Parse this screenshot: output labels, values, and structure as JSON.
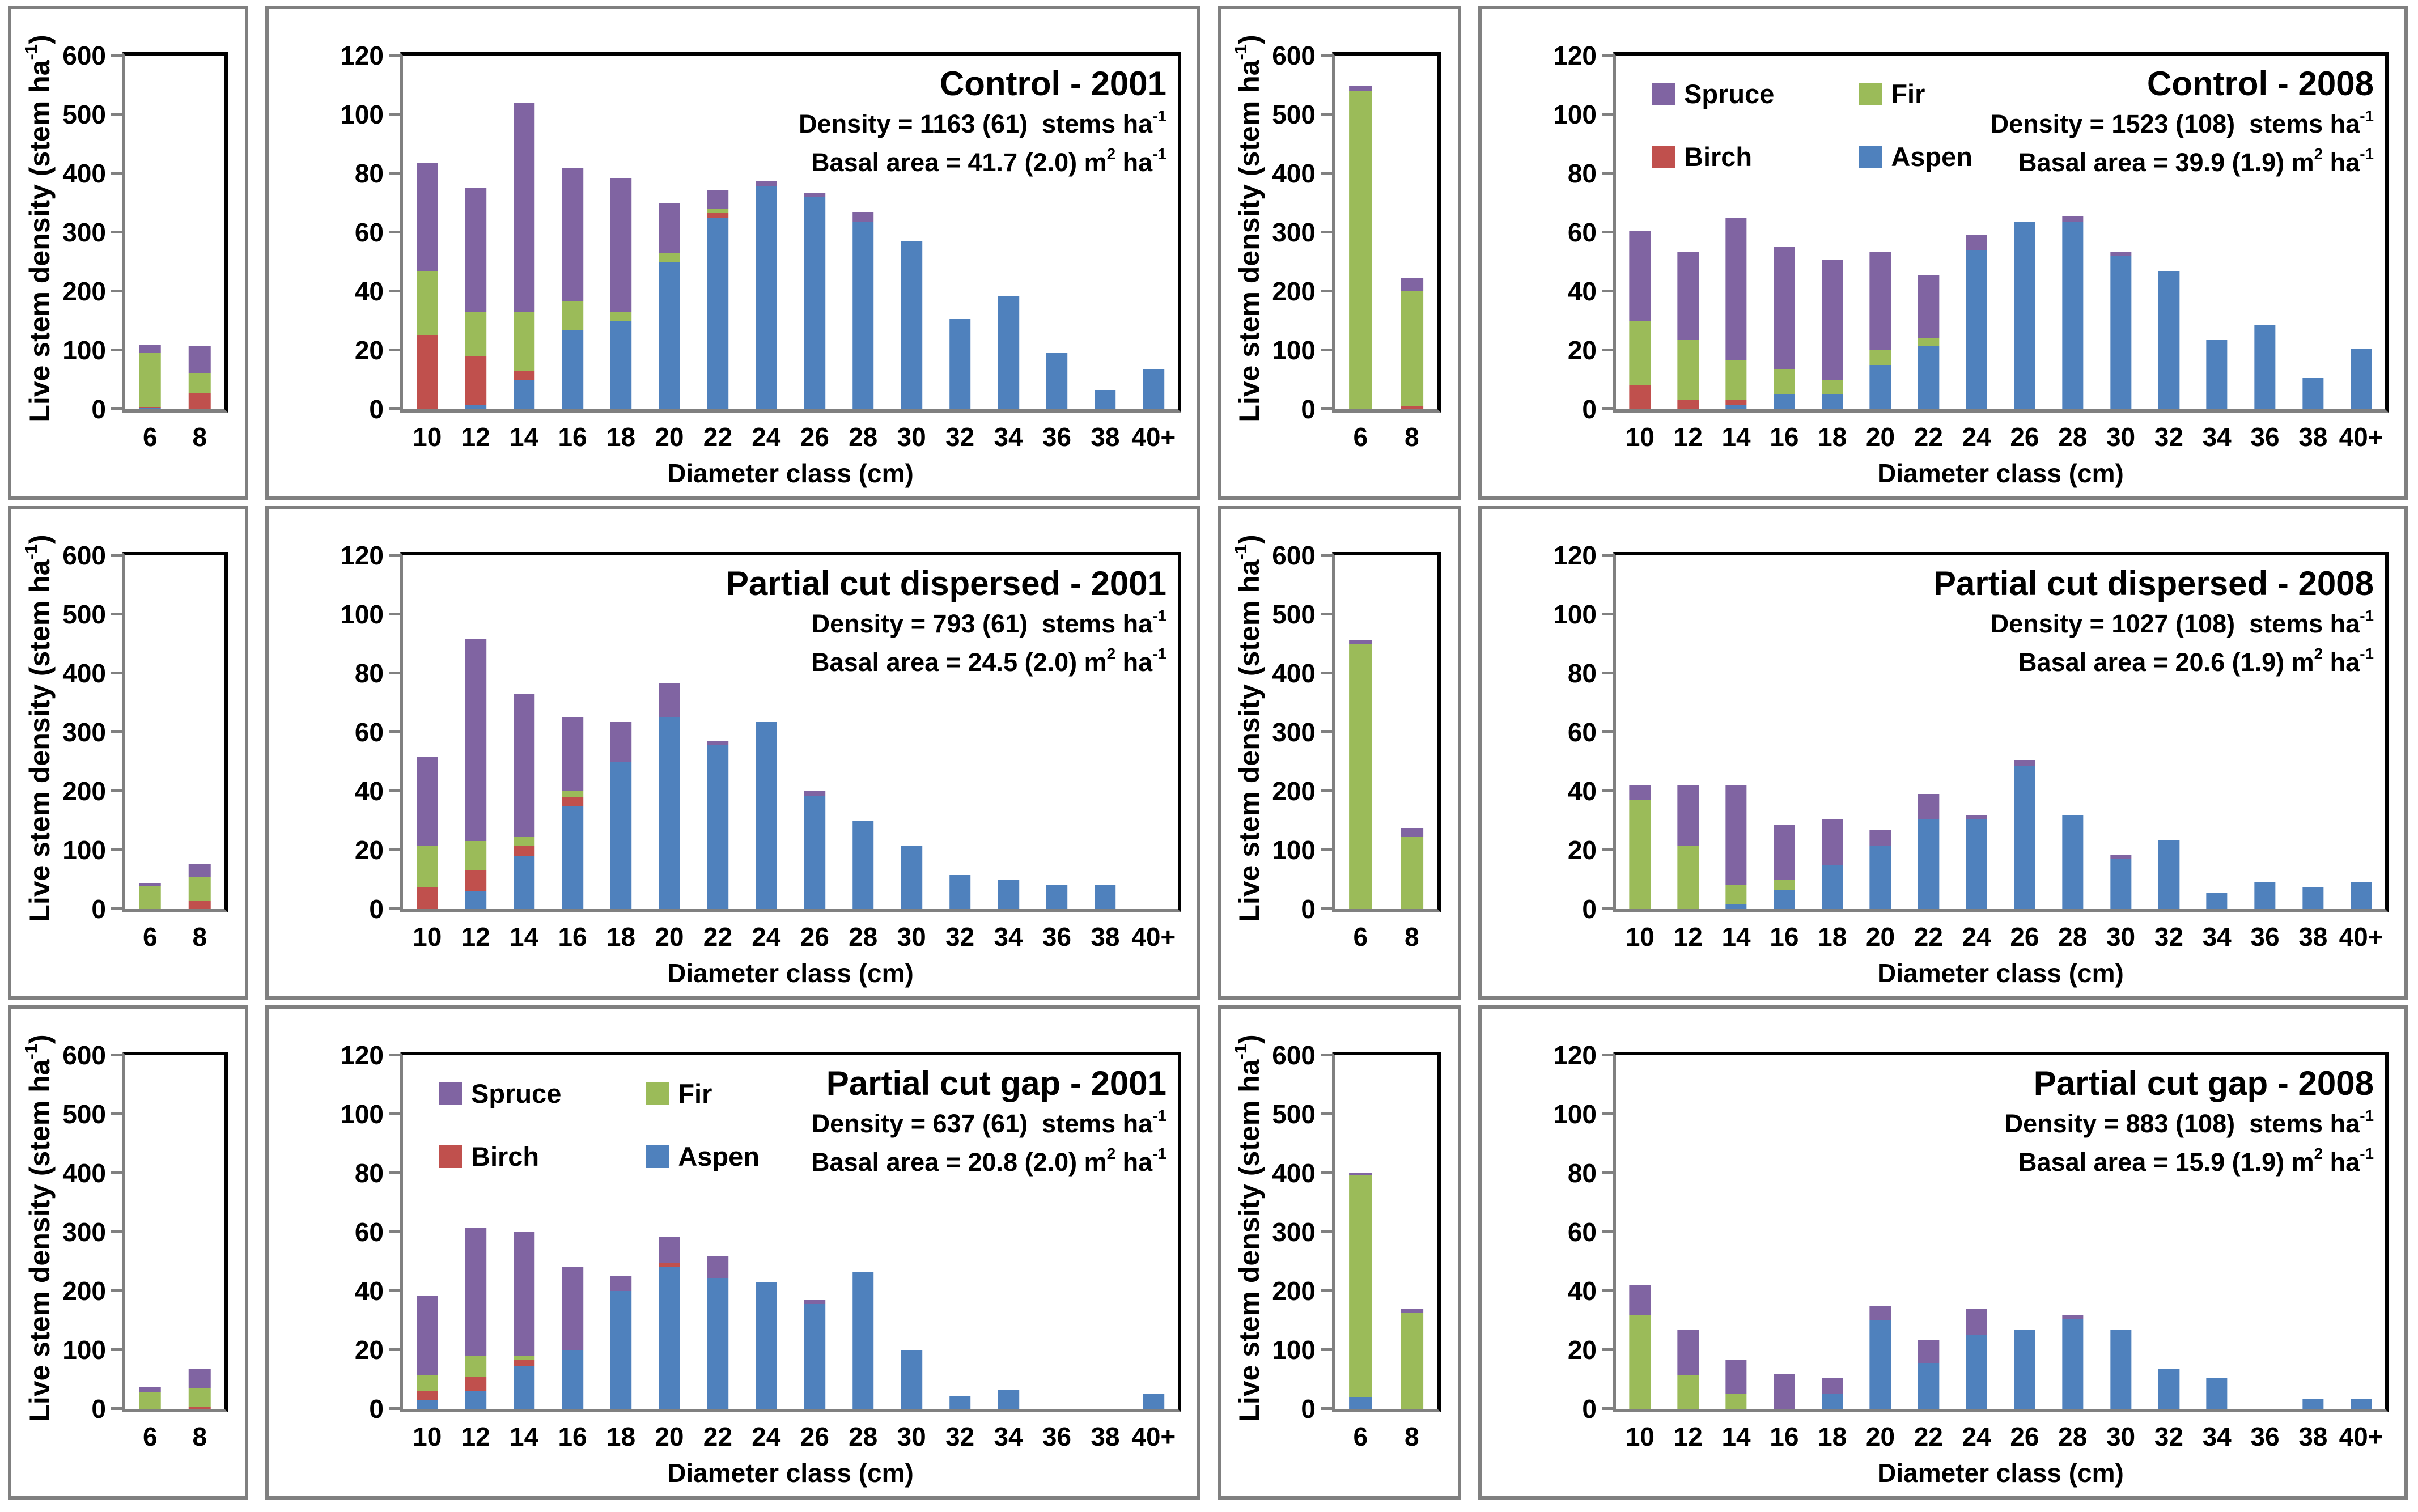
{
  "chart_data": {
    "type": "stacked-bar",
    "description": "Live stem density by diameter class, 3 treatments x 2 years; each panel pair: small chart (6-8 cm, 0-600) and large chart (10-40+ cm, 0-120)",
    "colors": {
      "spruce": "#8064A2",
      "fir": "#9BBB59",
      "birch": "#C0504D",
      "aspen": "#4F81BD",
      "axis": "#808080",
      "frame": "#000000"
    },
    "stack_order": [
      "aspen",
      "birch",
      "fir",
      "spruce"
    ],
    "legend": {
      "position": "top-left",
      "items": [
        {
          "label": "Spruce",
          "species": "spruce"
        },
        {
          "label": "Fir",
          "species": "fir"
        },
        {
          "label": "Birch",
          "species": "birch"
        },
        {
          "label": "Aspen",
          "species": "aspen"
        }
      ]
    },
    "labels": {
      "y_prefix": "Live stem density (stem ha",
      "y_sup": "-1",
      "y_suffix": ")",
      "x_axis": "Diameter class (cm)",
      "sup_minus1": "-1",
      "sup_2": "2",
      "ha_mid": " ha"
    },
    "small_axis": {
      "ylim": [
        0,
        600
      ],
      "ticks": [
        0,
        100,
        200,
        300,
        400,
        500,
        600
      ],
      "categories": [
        "6",
        "8"
      ]
    },
    "large_axis": {
      "ylim": [
        0,
        120
      ],
      "ticks": [
        0,
        20,
        40,
        60,
        80,
        100,
        120
      ],
      "categories": [
        "10",
        "12",
        "14",
        "16",
        "18",
        "20",
        "22",
        "24",
        "26",
        "28",
        "30",
        "32",
        "34",
        "36",
        "38",
        "40+"
      ]
    },
    "panels": [
      {
        "id": "control-2001",
        "title": "Control - 2001",
        "density_prefix": "Density = 1163 (61)  stems ha",
        "basal_prefix": "Basal area = 41.7 (2.0) m",
        "show_legend": false,
        "small": {
          "series": {
            "aspen": [
              1.5,
              0
            ],
            "birch": [
              1.5,
              28
            ],
            "fir": [
              92,
              34
            ],
            "spruce": [
              15,
              45
            ]
          }
        },
        "large": {
          "series": {
            "aspen": [
              0,
              1.5,
              10,
              27,
              30,
              50,
              65,
              75.5,
              72,
              63.5,
              57,
              30.5,
              38.5,
              19,
              6.5,
              13.5
            ],
            "birch": [
              25,
              16.5,
              3,
              0,
              0,
              0,
              1.5,
              0,
              0,
              0,
              0,
              0,
              0,
              0,
              0,
              0
            ],
            "fir": [
              22,
              15,
              20,
              9.5,
              3,
              3,
              1.5,
              0,
              0,
              0,
              0,
              0,
              0,
              0,
              0,
              0
            ],
            "spruce": [
              36.5,
              42,
              71,
              45.5,
              45.5,
              17,
              6.5,
              2,
              1.5,
              3.5,
              0,
              0,
              0,
              0,
              0,
              0
            ]
          }
        }
      },
      {
        "id": "control-2008",
        "title": "Control - 2008",
        "density_prefix": "Density = 1523 (108)  stems ha",
        "basal_prefix": "Basal area = 39.9 (1.9) m",
        "show_legend": true,
        "small": {
          "series": {
            "aspen": [
              0,
              0
            ],
            "birch": [
              0,
              5
            ],
            "fir": [
              540,
              195
            ],
            "spruce": [
              8,
              23
            ]
          }
        },
        "large": {
          "series": {
            "aspen": [
              0,
              0,
              1.5,
              5,
              5,
              15,
              21.5,
              54,
              63.5,
              63.5,
              52,
              47,
              23.5,
              28.5,
              10.5,
              20.5
            ],
            "birch": [
              8,
              3,
              1.5,
              0,
              0,
              0,
              0,
              0,
              0,
              0,
              0,
              0,
              0,
              0,
              0,
              0
            ],
            "fir": [
              22,
              20.5,
              13.5,
              8.5,
              5,
              5,
              2.5,
              0,
              0,
              0,
              0,
              0,
              0,
              0,
              0,
              0
            ],
            "spruce": [
              30.5,
              30,
              48.5,
              41.5,
              40.5,
              33.5,
              21.5,
              5,
              0,
              2,
              1.5,
              0,
              0,
              0,
              0,
              0
            ]
          }
        }
      },
      {
        "id": "partial-cut-dispersed-2001",
        "title": "Partial cut dispersed - 2001",
        "density_prefix": "Density = 793 (61)  stems ha",
        "basal_prefix": "Basal area = 24.5 (2.0) m",
        "show_legend": false,
        "small": {
          "series": {
            "aspen": [
              0,
              0
            ],
            "birch": [
              0,
              13
            ],
            "fir": [
              38,
              42
            ],
            "spruce": [
              6,
              22
            ]
          }
        },
        "large": {
          "series": {
            "aspen": [
              0,
              6,
              18,
              35,
              50,
              65,
              55.5,
              63.5,
              38.5,
              30,
              21.5,
              11.5,
              10,
              8,
              8,
              0
            ],
            "birch": [
              7.5,
              7,
              3.5,
              3,
              0,
              0,
              0,
              0,
              0,
              0,
              0,
              0,
              0,
              0,
              0,
              0
            ],
            "fir": [
              14,
              10,
              3,
              2,
              0,
              0,
              0,
              0,
              0,
              0,
              0,
              0,
              0,
              0,
              0,
              0
            ],
            "spruce": [
              30,
              68.5,
              48.5,
              25,
              13.5,
              11.5,
              1.5,
              0,
              1.5,
              0,
              0,
              0,
              0,
              0,
              0,
              0
            ]
          }
        }
      },
      {
        "id": "partial-cut-dispersed-2008",
        "title": "Partial cut dispersed - 2008",
        "density_prefix": "Density = 1027 (108)  stems ha",
        "basal_prefix": "Basal area = 20.6 (1.9) m",
        "show_legend": false,
        "small": {
          "series": {
            "aspen": [
              0,
              0
            ],
            "birch": [
              0,
              0
            ],
            "fir": [
              450,
              122
            ],
            "spruce": [
              7,
              16
            ]
          }
        },
        "large": {
          "series": {
            "aspen": [
              0,
              0,
              1.5,
              6.5,
              15,
              21.5,
              30.5,
              30.5,
              48.5,
              32,
              17,
              23.5,
              5.5,
              9,
              7.5,
              9
            ],
            "birch": [
              0,
              0,
              0,
              0,
              0,
              0,
              0,
              0,
              0,
              0,
              0,
              0,
              0,
              0,
              0,
              0
            ],
            "fir": [
              37,
              21.5,
              6.5,
              3.5,
              0,
              0,
              0,
              0,
              0,
              0,
              0,
              0,
              0,
              0,
              0,
              0
            ],
            "spruce": [
              5,
              20.5,
              34,
              18.5,
              15.5,
              5.5,
              8.5,
              1.5,
              2,
              0,
              1.5,
              0,
              0,
              0,
              0,
              0
            ]
          }
        }
      },
      {
        "id": "partial-cut-gap-2001",
        "title": "Partial cut gap - 2001",
        "density_prefix": "Density = 637 (61)  stems ha",
        "basal_prefix": "Basal area = 20.8 (2.0) m",
        "show_legend": true,
        "small": {
          "series": {
            "aspen": [
              0,
              0
            ],
            "birch": [
              0,
              3
            ],
            "fir": [
              28,
              32
            ],
            "spruce": [
              10,
              32
            ]
          }
        },
        "large": {
          "series": {
            "aspen": [
              3,
              6,
              14.5,
              20,
              40,
              48,
              44.5,
              43,
              35.5,
              46.5,
              20,
              4.5,
              6.5,
              0,
              0,
              5
            ],
            "birch": [
              3,
              5,
              2,
              0,
              0,
              1.5,
              0,
              0,
              0,
              0,
              0,
              0,
              0,
              0,
              0,
              0
            ],
            "fir": [
              5.5,
              7,
              1.5,
              0,
              0,
              0,
              0,
              0,
              0,
              0,
              0,
              0,
              0,
              0,
              0,
              0
            ],
            "spruce": [
              27,
              43.5,
              42,
              28,
              5,
              9,
              7.5,
              0,
              1.5,
              0,
              0,
              0,
              0,
              0,
              0,
              0
            ]
          }
        }
      },
      {
        "id": "partial-cut-gap-2008",
        "title": "Partial cut gap - 2008",
        "density_prefix": "Density = 883 (108)  stems ha",
        "basal_prefix": "Basal area = 15.9 (1.9) m",
        "show_legend": false,
        "small": {
          "series": {
            "aspen": [
              20,
              0
            ],
            "birch": [
              0,
              0
            ],
            "fir": [
              377,
              163
            ],
            "spruce": [
              4,
              6
            ]
          }
        },
        "large": {
          "series": {
            "aspen": [
              0,
              0,
              0,
              0,
              5,
              30,
              15.5,
              25,
              27,
              30.5,
              27,
              13.5,
              10.5,
              0,
              3.5,
              3.5
            ],
            "birch": [
              0,
              0,
              0,
              0,
              0,
              0,
              0,
              0,
              0,
              0,
              0,
              0,
              0,
              0,
              0,
              0
            ],
            "fir": [
              32,
              11.5,
              5,
              0,
              0,
              0,
              0,
              0,
              0,
              0,
              0,
              0,
              0,
              0,
              0,
              0
            ],
            "spruce": [
              10,
              15.5,
              11.5,
              12,
              5.5,
              5,
              8,
              9,
              0,
              1.5,
              0,
              0,
              0,
              0,
              0,
              0
            ]
          }
        }
      }
    ]
  }
}
